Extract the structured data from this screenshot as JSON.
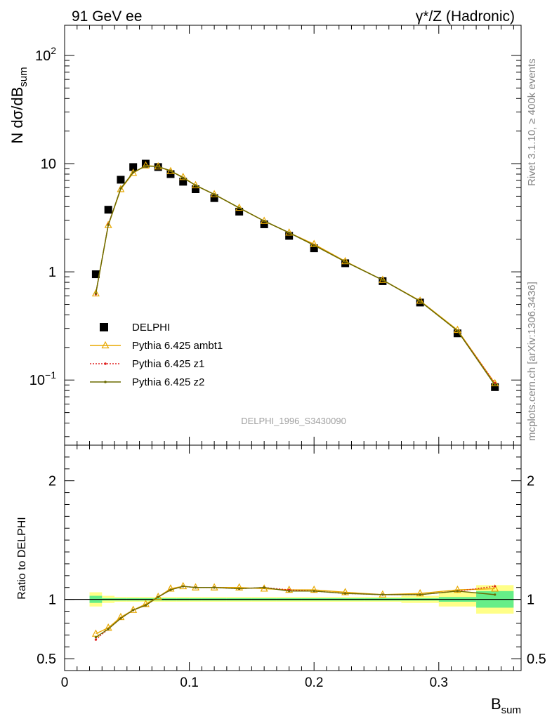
{
  "header": {
    "left": "91 GeV ee",
    "right": "γ*/Z (Hadronic)"
  },
  "side_labels": {
    "rivet": "Rivet 3.1.10, ≥ 400k events",
    "mcplots": "mcplots.cern.ch [arXiv:1306.3436]"
  },
  "watermark": "DELPHI_1996_S3430090",
  "chart_data": [
    {
      "type": "scatter",
      "panel": "main",
      "ylabel": "N dσ/dB_sum",
      "yscale": "log",
      "ylim": [
        0.025,
        190
      ],
      "xlim": [
        0,
        0.366
      ],
      "y_ticks": [
        "10^-1",
        "1",
        "10",
        "10^2"
      ],
      "x": [
        0.025,
        0.035,
        0.045,
        0.055,
        0.065,
        0.075,
        0.085,
        0.095,
        0.105,
        0.12,
        0.14,
        0.16,
        0.18,
        0.2,
        0.225,
        0.255,
        0.285,
        0.315,
        0.345
      ],
      "legend_position": "left",
      "series": [
        {
          "name": "DELPHI",
          "color": "#000000",
          "marker": "square",
          "values": [
            0.95,
            3.75,
            7.1,
            9.3,
            10.0,
            9.3,
            8.0,
            6.8,
            5.8,
            4.8,
            3.6,
            2.75,
            2.15,
            1.65,
            1.2,
            0.82,
            0.52,
            0.27,
            0.086
          ]
        },
        {
          "name": "Pythia 6.425 ambt1",
          "color": "#e8a800",
          "marker": "triangle-open",
          "values": [
            0.63,
            2.7,
            5.8,
            8.2,
            9.6,
            9.4,
            8.5,
            7.5,
            6.3,
            5.2,
            3.9,
            2.95,
            2.3,
            1.8,
            1.25,
            0.84,
            0.54,
            0.29,
            0.093
          ]
        },
        {
          "name": "Pythia 6.425 z1",
          "color": "#e02020",
          "marker": "dot",
          "dashed": true,
          "values": [
            0.62,
            2.75,
            5.9,
            8.3,
            9.5,
            9.4,
            8.6,
            7.4,
            6.3,
            5.2,
            3.9,
            2.95,
            2.3,
            1.77,
            1.24,
            0.84,
            0.535,
            0.285,
            0.094
          ]
        },
        {
          "name": "Pythia 6.425 z2",
          "color": "#6b6b00",
          "marker": "dot",
          "values": [
            0.63,
            2.7,
            5.9,
            8.3,
            9.5,
            9.4,
            8.6,
            7.4,
            6.3,
            5.2,
            3.9,
            2.95,
            2.3,
            1.76,
            1.24,
            0.84,
            0.535,
            0.285,
            0.09
          ]
        }
      ]
    },
    {
      "type": "line",
      "panel": "ratio",
      "xlabel": "B_sum",
      "ylabel": "Ratio to DELPHI",
      "ylim": [
        0.4,
        2.3
      ],
      "xlim": [
        0,
        0.366
      ],
      "x_ticks": [
        "0",
        "0.1",
        "0.2",
        "0.3"
      ],
      "y_ticks": [
        "0.5",
        "1",
        "2"
      ],
      "x": [
        0.025,
        0.035,
        0.045,
        0.055,
        0.065,
        0.075,
        0.085,
        0.095,
        0.105,
        0.12,
        0.14,
        0.16,
        0.18,
        0.2,
        0.225,
        0.255,
        0.285,
        0.315,
        0.345
      ],
      "band": {
        "edges": [
          0.02,
          0.03,
          0.04,
          0.05,
          0.06,
          0.07,
          0.08,
          0.09,
          0.1,
          0.11,
          0.13,
          0.15,
          0.17,
          0.19,
          0.21,
          0.24,
          0.27,
          0.3,
          0.33,
          0.36
        ],
        "inner": [
          0.03,
          0.01,
          0.01,
          0.01,
          0.01,
          0.01,
          0.01,
          0.01,
          0.01,
          0.01,
          0.01,
          0.01,
          0.01,
          0.01,
          0.01,
          0.01,
          0.01,
          0.02,
          0.07
        ],
        "outer": [
          0.06,
          0.03,
          0.02,
          0.02,
          0.02,
          0.02,
          0.02,
          0.02,
          0.02,
          0.02,
          0.02,
          0.02,
          0.02,
          0.02,
          0.02,
          0.02,
          0.03,
          0.06,
          0.12
        ],
        "inner_color": "#66ee88",
        "outer_color": "#ffff88"
      },
      "series": [
        {
          "name": "Pythia 6.425 ambt1",
          "color": "#e8a800",
          "values": [
            0.71,
            0.76,
            0.85,
            0.91,
            0.96,
            1.02,
            1.09,
            1.11,
            1.1,
            1.1,
            1.1,
            1.09,
            1.08,
            1.08,
            1.06,
            1.04,
            1.05,
            1.08,
            1.09
          ]
        },
        {
          "name": "Pythia 6.425 z1",
          "color": "#e02020",
          "values": [
            0.66,
            0.75,
            0.84,
            0.91,
            0.95,
            1.02,
            1.08,
            1.11,
            1.1,
            1.1,
            1.09,
            1.1,
            1.08,
            1.07,
            1.05,
            1.04,
            1.04,
            1.07,
            1.11
          ]
        },
        {
          "name": "Pythia 6.425 z2",
          "color": "#6b6b00",
          "values": [
            0.68,
            0.75,
            0.84,
            0.91,
            0.95,
            1.02,
            1.08,
            1.11,
            1.1,
            1.1,
            1.09,
            1.1,
            1.07,
            1.07,
            1.05,
            1.04,
            1.04,
            1.07,
            1.04
          ]
        }
      ]
    }
  ]
}
